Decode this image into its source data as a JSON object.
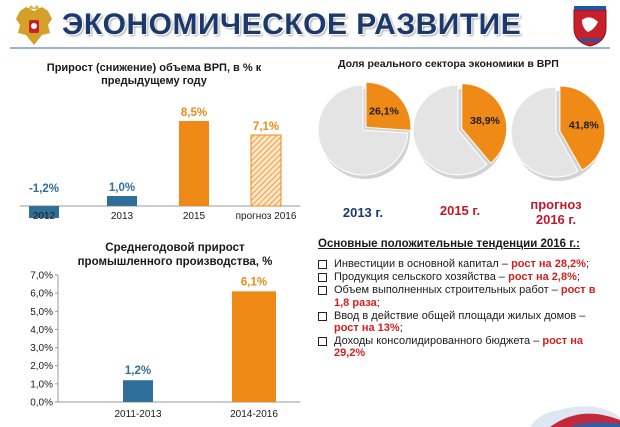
{
  "header": {
    "title": "ЭКОНОМИЧЕСКОЕ РАЗВИТИЕ"
  },
  "colors": {
    "title": "#1b3a6b",
    "orange": "#f08a16",
    "blue": "#2f6f99",
    "pie_gray": "#e4e4e4",
    "year_2013": "#1b3a6b",
    "year_red": "#c0182a"
  },
  "chart_data": [
    {
      "type": "bar",
      "title": "Прирост (снижение) объема ВРП, в % к предыдущему году",
      "categories": [
        "2012",
        "2013",
        "2015",
        "прогноз 2016"
      ],
      "values": [
        -1.2,
        1.0,
        8.5,
        7.1
      ],
      "labels": [
        "-1,2%",
        "1,0%",
        "8,5%",
        "7,1%"
      ],
      "series_colors": [
        "blue",
        "blue",
        "orange",
        "orange-hatched"
      ]
    },
    {
      "type": "bar",
      "title": "Среднегодовой прирост промышленного производства, %",
      "categories": [
        "2011-2013",
        "2014-2016"
      ],
      "values": [
        1.2,
        6.1
      ],
      "labels": [
        "1,2%",
        "6,1%"
      ],
      "ylim": [
        0,
        7
      ],
      "yticks": [
        "0,0%",
        "1,0%",
        "2,0%",
        "3,0%",
        "4,0%",
        "5,0%",
        "6,0%",
        "7,0%"
      ],
      "series_colors": [
        "blue",
        "orange"
      ]
    },
    {
      "type": "pie",
      "title": "Доля реального сектора экономики в ВРП",
      "categories": [
        "2013 г.",
        "2015 г.",
        "прогноз 2016 г."
      ],
      "values": [
        26.1,
        38.9,
        41.8
      ],
      "labels": [
        "26,1%",
        "38,9%",
        "41,8%"
      ]
    }
  ],
  "pies": {
    "year_2013": "2013 г.",
    "year_2015": "2015 г.",
    "year_2016_line1": "прогноз",
    "year_2016_line2": "2016 г."
  },
  "trends": {
    "title": "Основные положительные тенденции 2016 г.:",
    "items": [
      {
        "text": "Инвестиции в основной капитал – ",
        "highlight": "рост на 28,2%",
        "tail": ";"
      },
      {
        "text": "Продукция сельского хозяйства – ",
        "highlight": "рост на 2,8%",
        "tail": ";"
      },
      {
        "text": "Объем выполненных строительных работ – ",
        "highlight": "рост в 1,8 раза",
        "tail": ";"
      },
      {
        "text": "Ввод в действие общей площади жилых домов – ",
        "highlight": "рост на 13%",
        "tail": ";"
      },
      {
        "text": "Доходы консолидированного бюджета – ",
        "highlight": "рост на 29,2%",
        "tail": ""
      }
    ]
  }
}
